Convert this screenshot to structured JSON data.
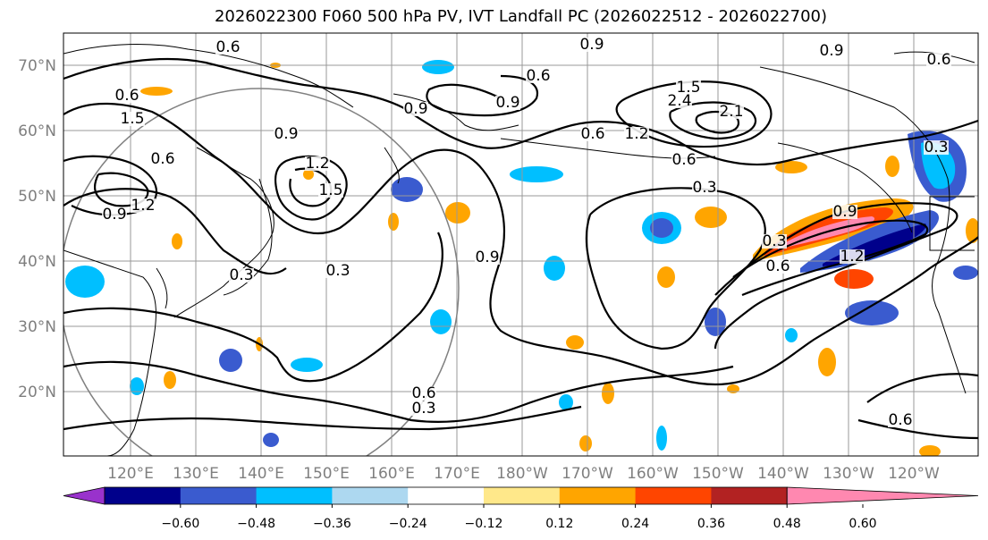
{
  "title": "2026022300 F060 500 hPa PV, IVT Landfall PC (2026022512 - 2026022700)",
  "map": {
    "lat_labels": [
      "70°N",
      "60°N",
      "50°N",
      "40°N",
      "30°N",
      "20°N"
    ],
    "lon_labels": [
      "120°E",
      "130°E",
      "140°E",
      "150°E",
      "160°E",
      "170°E",
      "180°W",
      "170°W",
      "160°W",
      "150°W",
      "140°W",
      "130°W",
      "120°W"
    ],
    "contour_labels": [
      "0.6",
      "0.6",
      "0.9",
      "1.2",
      "1.5",
      "0.6",
      "0.9",
      "1.2",
      "1.5",
      "0.9",
      "0.6",
      "0.9",
      "0.6",
      "1.5",
      "2.4",
      "2.1",
      "0.9",
      "1.2",
      "0.6",
      "0.3",
      "0.3",
      "0.3",
      "0.9",
      "0.6",
      "0.3",
      "0.6",
      "0.3",
      "0.9",
      "1.2",
      "0.6",
      "0.3",
      "0.6",
      "0.9"
    ]
  },
  "colorbar": {
    "ticks": [
      "−0.60",
      "−0.48",
      "−0.36",
      "−0.24",
      "−0.12",
      "0.12",
      "0.24",
      "0.36",
      "0.48",
      "0.60"
    ],
    "colors": [
      "#9932cc",
      "#00008b",
      "#3a5bcf",
      "#00bfff",
      "#add8f0",
      "#ffffff",
      "#ffe88a",
      "#ffa500",
      "#ff4500",
      "#b22222",
      "#ff88b0"
    ]
  }
}
